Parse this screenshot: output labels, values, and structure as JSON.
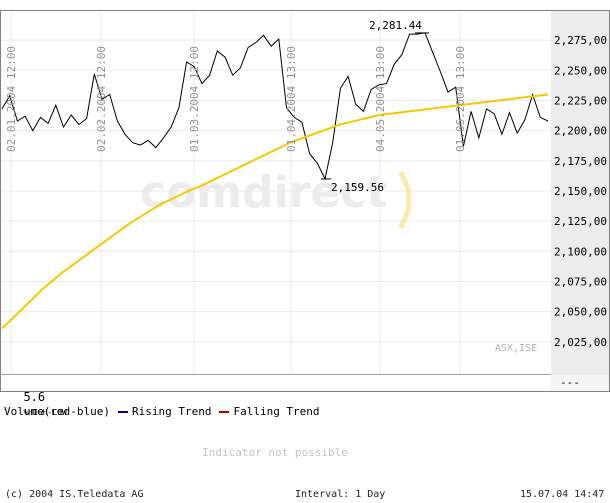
{
  "chart_data": {
    "type": "line",
    "series": [
      {
        "name": "",
        "color": "#000000",
        "x": [
          0,
          2,
          4,
          6,
          8,
          10,
          12,
          14,
          16,
          18,
          20,
          22,
          24,
          26,
          28,
          30,
          32,
          34,
          36,
          38,
          40,
          42,
          44,
          46,
          48,
          50,
          52,
          54,
          56,
          58,
          60,
          62,
          64,
          66,
          68,
          70,
          72,
          74,
          76,
          78,
          80,
          82,
          84,
          86,
          88,
          90,
          92,
          94,
          96,
          98,
          100,
          102,
          104,
          106,
          108,
          110,
          112,
          114,
          116,
          118,
          120,
          122,
          124,
          126,
          128,
          130,
          132,
          134,
          136,
          138,
          140,
          142
        ],
        "values": [
          2218,
          2229,
          2208,
          2212,
          2200,
          2211,
          2206,
          2221,
          2203,
          2213,
          2205,
          2210,
          2247,
          2226,
          2230,
          2208,
          2197,
          2190,
          2188,
          2192,
          2186,
          2194,
          2203,
          2219,
          2257,
          2253,
          2239,
          2246,
          2266,
          2261,
          2246,
          2252,
          2269,
          2273,
          2279,
          2270,
          2276,
          2219,
          2211,
          2207,
          2181,
          2173,
          2160,
          2190,
          2235,
          2245,
          2222,
          2216,
          2234,
          2238,
          2239,
          2255,
          2263,
          2280,
          2280,
          2281,
          2265,
          2249,
          2232,
          2236,
          2187,
          2216,
          2194,
          2218,
          2214,
          2197,
          2215,
          2198,
          2209,
          2230,
          2211,
          2208
        ]
      },
      {
        "name": "",
        "color": "#f5c800",
        "x": [
          0,
          10,
          20,
          30,
          40,
          50,
          60,
          70,
          80,
          90,
          100,
          110,
          120,
          130,
          140,
          150,
          160,
          170,
          180,
          190,
          200,
          210,
          220,
          230,
          240,
          250,
          260,
          270,
          280,
          290,
          300,
          310,
          320,
          330,
          340,
          350,
          360,
          370,
          380,
          390,
          400,
          410,
          420,
          430,
          440,
          450,
          460,
          470,
          480,
          490,
          500,
          510,
          520,
          530,
          540,
          550
        ],
        "values": [
          2036,
          2044,
          2052,
          2060,
          2068,
          2075,
          2082,
          2088,
          2094,
          2100,
          2106,
          2112,
          2118,
          2124,
          2129,
          2134,
          2139,
          2143,
          2147,
          2151,
          2154,
          2158,
          2162,
          2166,
          2170,
          2174,
          2178,
          2182,
          2186,
          2190,
          2193,
          2196,
          2199,
          2202,
          2205,
          2207,
          2209,
          2211,
          2213,
          2214,
          2215,
          2216,
          2217,
          2218,
          2219,
          2220,
          2221,
          2222,
          2223,
          2224,
          2225,
          2226,
          2227,
          2228,
          2229,
          2230
        ]
      }
    ],
    "yaxis": {
      "min": 2000,
      "max": 2300,
      "ticks": [
        "2,275,00",
        "2,250,00",
        "2,225,00",
        "2,200,00",
        "2,175,00",
        "2,150,00",
        "2,125,00",
        "2,100,00",
        "2,075,00",
        "2,050,00",
        "2,025,00"
      ]
    },
    "xaxis": {
      "date_labels": [
        "02.01.2004 12:00",
        "02.02.2004 12:00",
        "01.03.2004 12:00",
        "01.04.2004 13:00",
        "04.05.2004 13:00",
        "01.06.2004 13:00"
      ]
    },
    "annotations": [
      "2,281.44",
      "2,159.56"
    ],
    "grid": true
  },
  "main": {
    "watermark": "comdirect",
    "source_tag": "ASX,ISE",
    "range_value": "5.6",
    "range_label": "%HIGH-LOW",
    "scale_dash": "---"
  },
  "volume": {
    "title": "Volume(red-blue)",
    "rising_label": "Rising Trend",
    "falling_label": "Falling Trend",
    "rising_color": "#000080",
    "falling_color": "#b00000",
    "message": "Indicator not possible"
  },
  "footer": {
    "copyright": "(c) 2004  IS.Teledata AG",
    "interval": "Interval: 1 Day",
    "timestamp": "15.07.04 14:47"
  }
}
